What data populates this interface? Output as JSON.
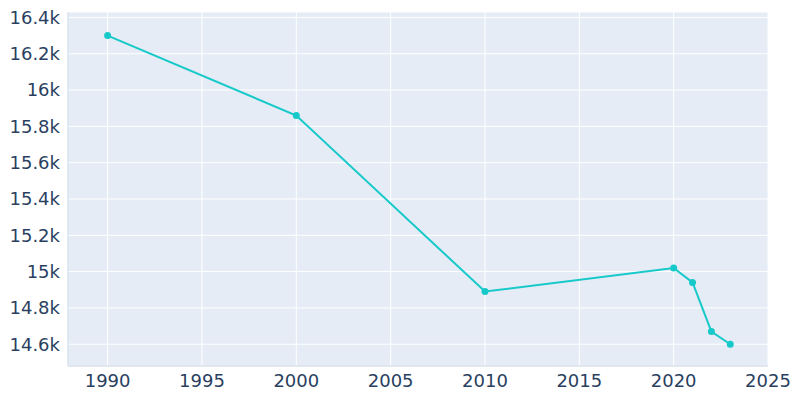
{
  "chart_data": {
    "type": "line",
    "x": [
      1990,
      2000,
      2010,
      2020,
      2021,
      2022,
      2023
    ],
    "values": [
      16300,
      15860,
      14890,
      15020,
      14940,
      14670,
      14600
    ],
    "color": "#17c9c9",
    "marker": "circle",
    "xlim": [
      1987.9,
      2025
    ],
    "xticks": [
      1990,
      1995,
      2000,
      2005,
      2010,
      2015,
      2020,
      2025
    ],
    "ylim": [
      14480,
      16430
    ],
    "yticks": [
      {
        "value": 14600,
        "label": "14.6k"
      },
      {
        "value": 14800,
        "label": "14.8k"
      },
      {
        "value": 15000,
        "label": "15k"
      },
      {
        "value": 15200,
        "label": "15.2k"
      },
      {
        "value": 15400,
        "label": "15.4k"
      },
      {
        "value": 15600,
        "label": "15.6k"
      },
      {
        "value": 15800,
        "label": "15.8k"
      },
      {
        "value": 16000,
        "label": "16k"
      },
      {
        "value": 16200,
        "label": "16.2k"
      },
      {
        "value": 16400,
        "label": "16.4k"
      }
    ],
    "grid": true
  }
}
